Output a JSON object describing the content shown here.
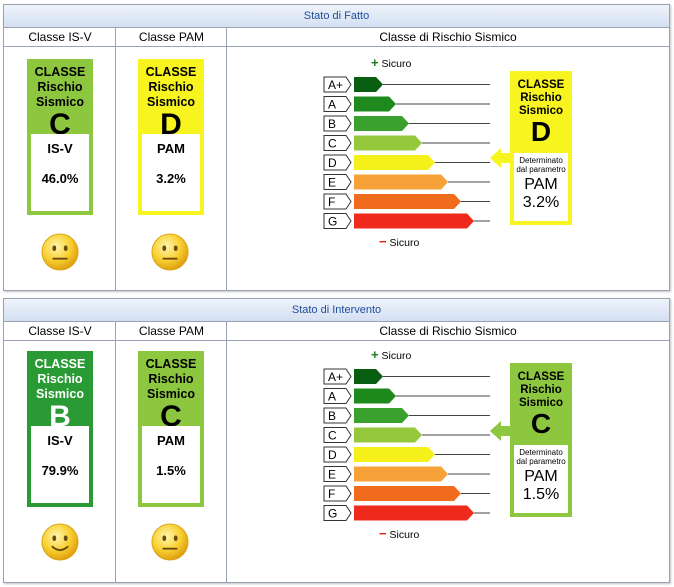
{
  "panels": [
    {
      "title": "Stato di Fatto",
      "col_isv": "Classe IS-V",
      "col_pam": "Classe PAM",
      "col_rischio": "Classe di Rischio Sismico",
      "isv": {
        "title1": "CLASSE",
        "title2": "Rischio",
        "title3": "Sismico",
        "letter": "C",
        "label": "IS-V",
        "value": "46.0%",
        "color": "#8dc63f",
        "smiley": "neutral"
      },
      "pam": {
        "title1": "CLASSE",
        "title2": "Rischio",
        "title3": "Sismico",
        "letter": "D",
        "label": "PAM",
        "value": "3.2%",
        "color": "#f7f41f",
        "smiley": "neutral"
      },
      "scale": {
        "plus_label": "Sicuro",
        "minus_label": "Sicuro",
        "classes": [
          "A+",
          "A",
          "B",
          "C",
          "D",
          "E",
          "F",
          "G"
        ],
        "colors": [
          "#0a5e12",
          "#1e8a1e",
          "#3aa02e",
          "#96c83c",
          "#f5ef1a",
          "#f7a239",
          "#f16b1c",
          "#ee2a1d"
        ],
        "arrow_target": "D"
      },
      "result": {
        "title1": "CLASSE",
        "title2": "Rischio",
        "title3": "Sismico",
        "letter": "D",
        "det1": "Determinato",
        "det2": "dal parametro",
        "param": "PAM",
        "value": "3.2%",
        "color": "#f7f41f"
      }
    },
    {
      "title": "Stato di Intervento",
      "col_isv": "Classe IS-V",
      "col_pam": "Classe PAM",
      "col_rischio": "Classe di Rischio Sismico",
      "isv": {
        "title1": "CLASSE",
        "title2": "Rischio",
        "title3": "Sismico",
        "letter": "B",
        "label": "IS-V",
        "value": "79.9%",
        "color": "#2a9a35",
        "smiley": "happy"
      },
      "pam": {
        "title1": "CLASSE",
        "title2": "Rischio",
        "title3": "Sismico",
        "letter": "C",
        "label": "PAM",
        "value": "1.5%",
        "color": "#8dc63f",
        "smiley": "neutral"
      },
      "scale": {
        "plus_label": "Sicuro",
        "minus_label": "Sicuro",
        "classes": [
          "A+",
          "A",
          "B",
          "C",
          "D",
          "E",
          "F",
          "G"
        ],
        "colors": [
          "#0a5e12",
          "#1e8a1e",
          "#3aa02e",
          "#96c83c",
          "#f5ef1a",
          "#f7a239",
          "#f16b1c",
          "#ee2a1d"
        ],
        "arrow_target": "C"
      },
      "result": {
        "title1": "CLASSE",
        "title2": "Rischio",
        "title3": "Sismico",
        "letter": "C",
        "det1": "Determinato",
        "det2": "dal parametro",
        "param": "PAM",
        "value": "1.5%",
        "color": "#8dc63f"
      }
    }
  ]
}
